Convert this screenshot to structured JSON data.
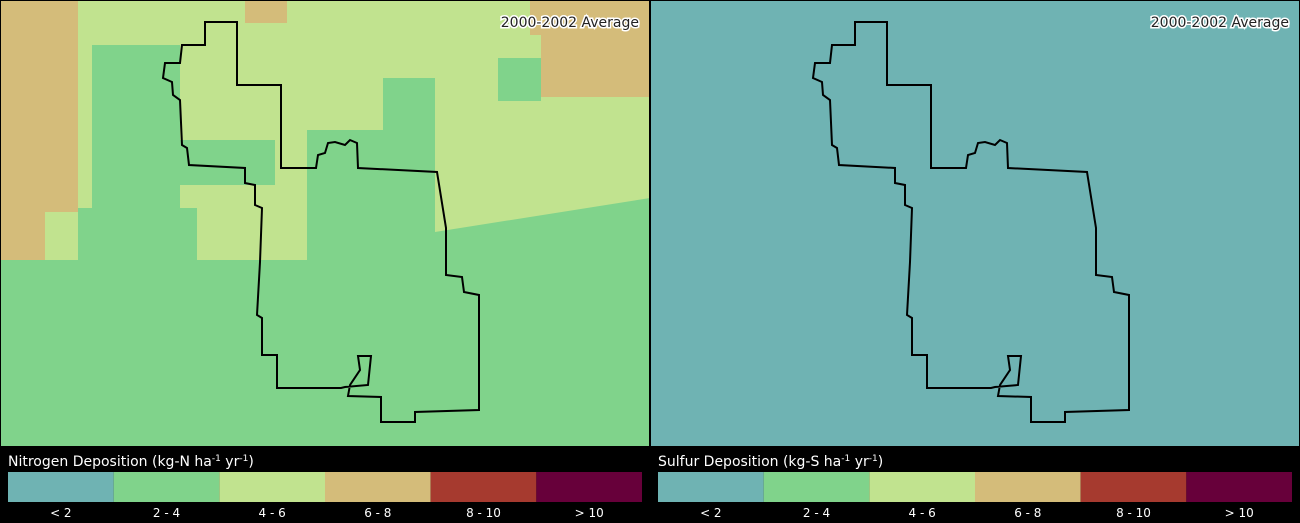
{
  "panels": [
    {
      "title": "2000-2002 Average",
      "legend_title": [
        "Nitrogen Deposition (kg-N ha",
        "-1",
        " yr",
        "-1",
        ")"
      ],
      "legend": [
        {
          "label": "< 2",
          "color": "#6fb3b3"
        },
        {
          "label": "2 - 4",
          "color": "#80d38b"
        },
        {
          "label": "4 - 6",
          "color": "#c1e38f"
        },
        {
          "label": "6 - 8",
          "color": "#d4bc7a"
        },
        {
          "label": "8 - 10",
          "color": "#a63a2f"
        },
        {
          "label": "> 10",
          "color": "#67003a"
        }
      ]
    },
    {
      "title": "2000-2002 Average",
      "legend_title": [
        "Sulfur Deposition (kg-S ha",
        "-1",
        " yr",
        "-1",
        ")"
      ],
      "legend": [
        {
          "label": "< 2",
          "color": "#6fb3b3"
        },
        {
          "label": "2 - 4",
          "color": "#80d38b"
        },
        {
          "label": "4 - 6",
          "color": "#c1e38f"
        },
        {
          "label": "6 - 8",
          "color": "#d4bc7a"
        },
        {
          "label": "8 - 10",
          "color": "#a63a2f"
        },
        {
          "label": "> 10",
          "color": "#67003a"
        }
      ]
    }
  ]
}
